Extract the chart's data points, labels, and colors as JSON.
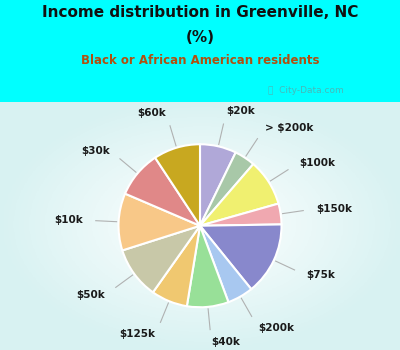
{
  "title_line1": "Income distribution in Greenville, NC",
  "title_line2": "(%)",
  "subtitle": "Black or African American residents",
  "title_color": "#111111",
  "subtitle_color": "#b05010",
  "cyan_bg": "#00ffff",
  "chart_bg_color": "#d0eedf",
  "watermark": "City-Data.com",
  "labels": [
    "$20k",
    "> $200k",
    "$100k",
    "$150k",
    "$75k",
    "$200k",
    "$40k",
    "$125k",
    "$50k",
    "$10k",
    "$30k",
    "$60k"
  ],
  "values": [
    7,
    4,
    9,
    4,
    14,
    5,
    8,
    7,
    10,
    11,
    9,
    9
  ],
  "colors": [
    "#b0a8d8",
    "#a8c8a8",
    "#f0f070",
    "#f0a8b0",
    "#8888cc",
    "#a8c8f0",
    "#98e098",
    "#f0c870",
    "#c8c8a8",
    "#f8c888",
    "#e08888",
    "#c8a820"
  ],
  "label_fontsize": 7.5,
  "figsize": [
    4.0,
    3.5
  ],
  "dpi": 100
}
